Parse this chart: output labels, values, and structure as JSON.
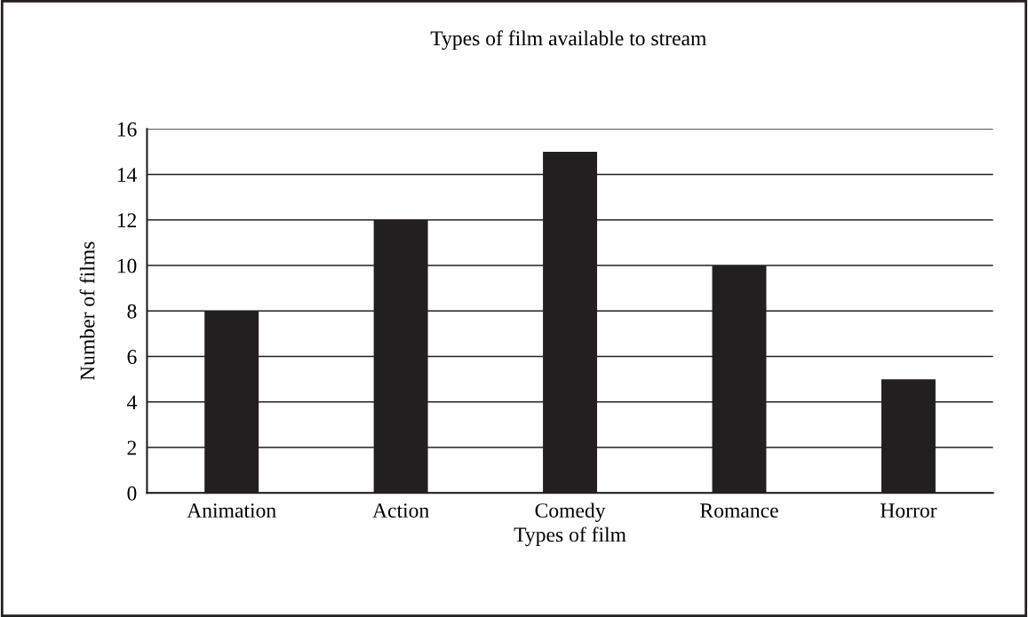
{
  "chart_data": {
    "type": "bar",
    "title": "Types of film available to stream",
    "xlabel": "Types of film",
    "ylabel": "Number of films",
    "categories": [
      "Animation",
      "Action",
      "Comedy",
      "Romance",
      "Horror"
    ],
    "values": [
      8,
      12,
      15,
      10,
      5
    ],
    "color": "#231f20",
    "ylim": [
      0,
      16
    ],
    "yticks": [
      0,
      2,
      4,
      6,
      8,
      10,
      12,
      14,
      16
    ],
    "grid": "y"
  }
}
